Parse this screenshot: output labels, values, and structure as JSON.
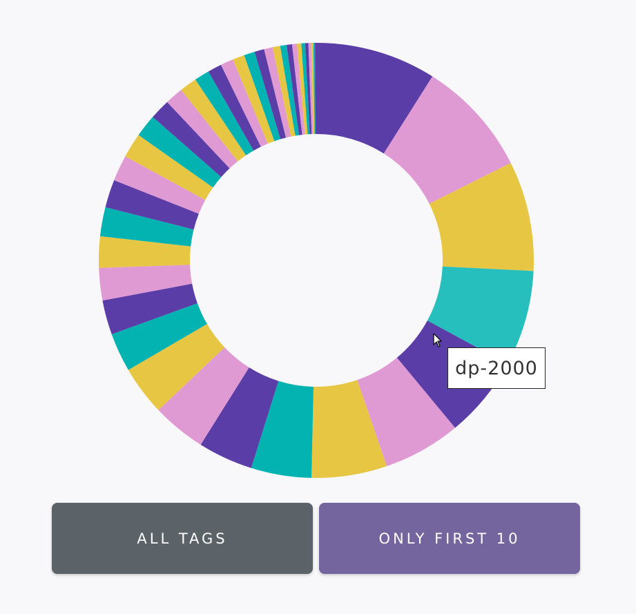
{
  "chart_data": {
    "type": "pie",
    "variant": "donut",
    "tooltip_label": "dp-2000",
    "colors": {
      "purple": "#5b3da8",
      "pink": "#e09ad3",
      "yellow": "#e7c643",
      "teal": "#02b3b1",
      "highlight_teal": "#27bfbd",
      "background": "#f8f8fa"
    },
    "palette_order": [
      "purple",
      "pink",
      "yellow",
      "teal"
    ],
    "highlighted_index": 3,
    "values": [
      11.2,
      10.8,
      10.2,
      8.9,
      7.6,
      7.2,
      7.0,
      5.6,
      5.1,
      5.0,
      4.6,
      3.6,
      3.2,
      3.0,
      2.9,
      2.7,
      2.6,
      2.4,
      2.3,
      2.1,
      1.9,
      1.7,
      1.6,
      1.4,
      1.3,
      1.2,
      1.1,
      1.0,
      0.9,
      0.8,
      0.7,
      0.6,
      0.5,
      0.45,
      0.4,
      0.35,
      0.3,
      0.25,
      0.2,
      0.15,
      0.12
    ]
  },
  "buttons": {
    "all_tags": "ALL TAGS",
    "only_first_10": "ONLY FIRST 10"
  }
}
